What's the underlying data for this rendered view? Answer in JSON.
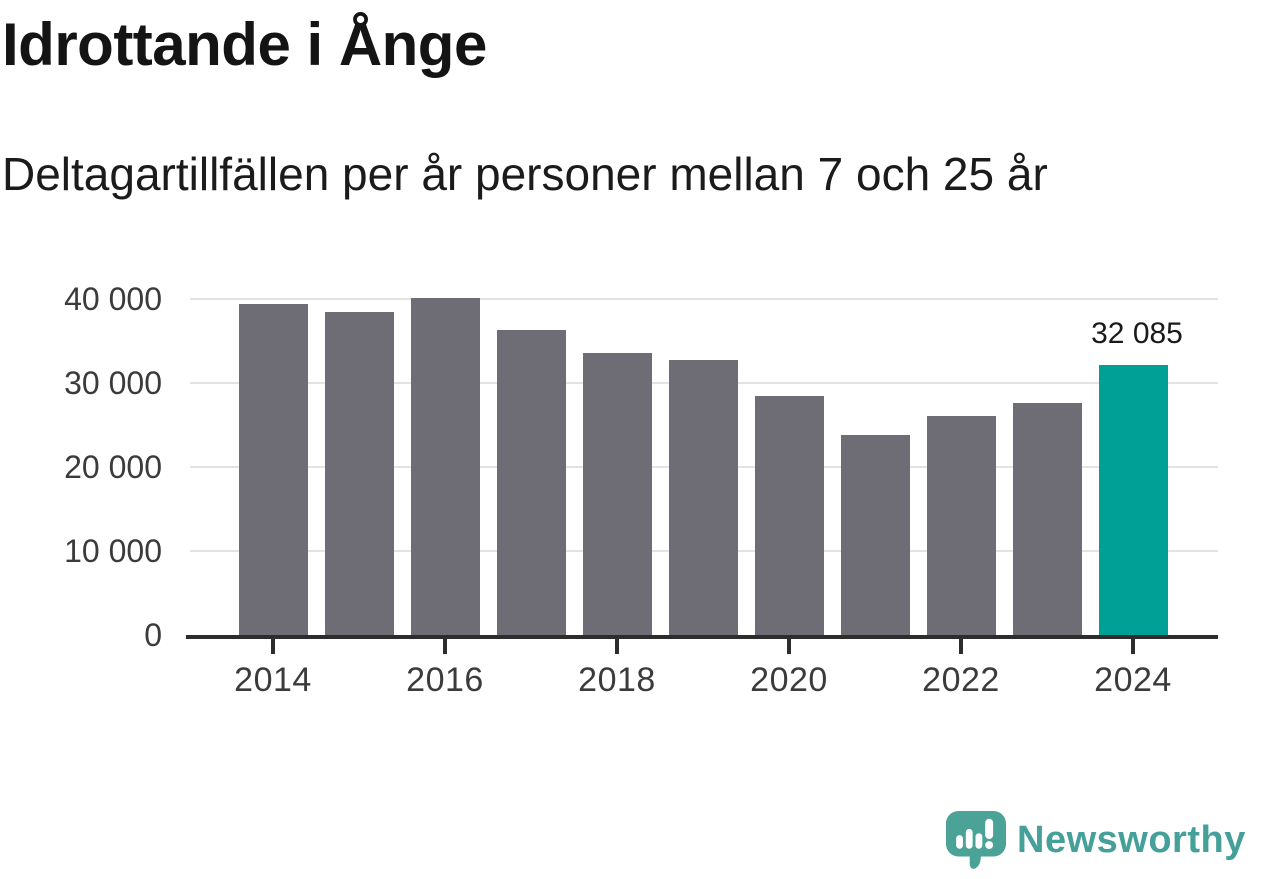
{
  "header": {
    "title": "Idrottande i Ånge",
    "subtitle": "Deltagartillfällen per år personer mellan 7 och 25 år"
  },
  "chart_data": {
    "type": "bar",
    "categories": [
      "2014",
      "2015",
      "2016",
      "2017",
      "2018",
      "2019",
      "2020",
      "2021",
      "2022",
      "2023",
      "2024"
    ],
    "values": [
      39400,
      38400,
      40100,
      36300,
      33600,
      32700,
      28400,
      23800,
      26100,
      27600,
      32085
    ],
    "title": "Idrottande i Ånge",
    "subtitle": "Deltagartillfällen per år personer mellan 7 och 25 år",
    "xlabel": "",
    "ylabel": "",
    "ylim": [
      0,
      41000
    ],
    "grid": true,
    "legend_position": "none",
    "highlight_category": "2024",
    "annotation": {
      "category": "2024",
      "text": "32 085"
    },
    "y_ticks": [
      {
        "value": 40000,
        "label": "40 000"
      },
      {
        "value": 30000,
        "label": "30 000"
      },
      {
        "value": 20000,
        "label": "20 000"
      },
      {
        "value": 10000,
        "label": "10 000"
      },
      {
        "value": 0,
        "label": "0"
      }
    ],
    "x_tick_labels": [
      "2014",
      "2016",
      "2018",
      "2020",
      "2022",
      "2024"
    ]
  },
  "colors": {
    "bar": "#6e6d75",
    "highlight": "#00a097",
    "grid": "#e3e3e3",
    "axis": "#2d2d2d",
    "tick_label": "#3b3b3b",
    "annotation_text": "#1a1a1a",
    "brand": "#44a098",
    "brand_bubble": "#4aa396"
  },
  "footer": {
    "brand": "Newsworthy"
  }
}
